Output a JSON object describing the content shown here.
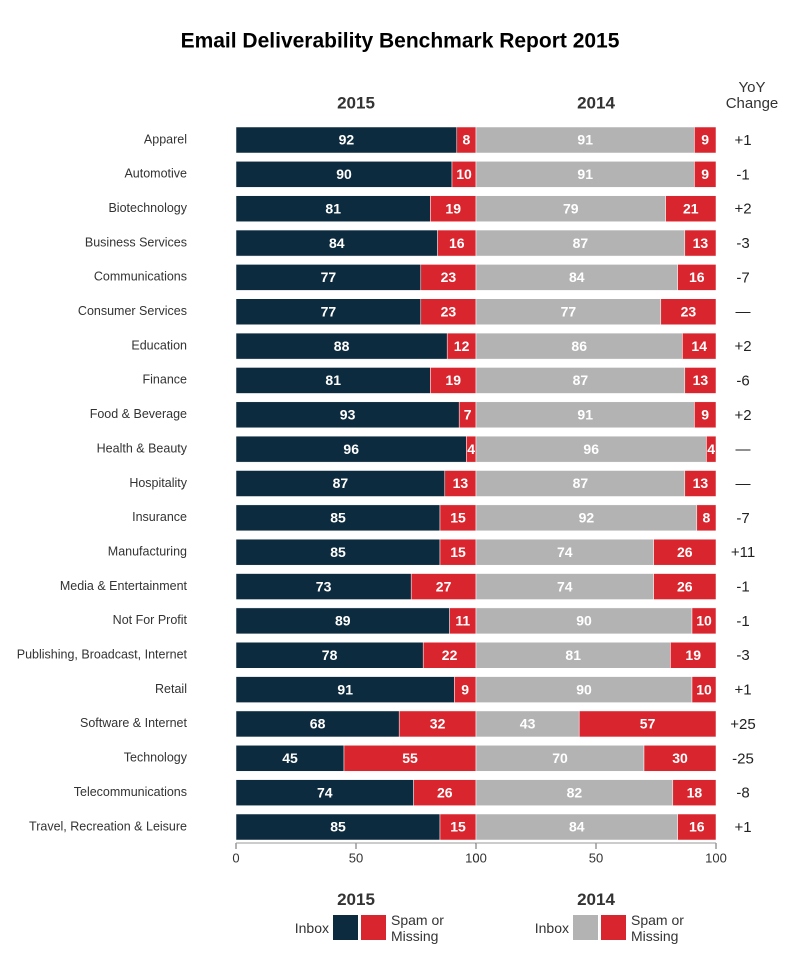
{
  "title": "Email Deliverability Benchmark Report 2015",
  "chart_data": [
    {
      "type": "bar",
      "orientation": "horizontal",
      "stacked": true,
      "title": "2015",
      "categories": [
        "Apparel",
        "Automotive",
        "Biotechnology",
        "Business Services",
        "Communications",
        "Consumer Services",
        "Education",
        "Finance",
        "Food & Beverage",
        "Health & Beauty",
        "Hospitality",
        "Insurance",
        "Manufacturing",
        "Media & Entertainment",
        "Not For Profit",
        "Publishing, Broadcast, Internet",
        "Retail",
        "Software & Internet",
        "Technology",
        "Telecommunications",
        "Travel, Recreation & Leisure"
      ],
      "series": [
        {
          "name": "Inbox",
          "color": "#0d2b3e",
          "values": [
            92,
            90,
            81,
            84,
            77,
            77,
            88,
            81,
            93,
            96,
            87,
            85,
            85,
            73,
            89,
            78,
            91,
            68,
            45,
            74,
            85
          ]
        },
        {
          "name": "Spam or Missing",
          "color": "#d9262e",
          "values": [
            8,
            10,
            19,
            16,
            23,
            23,
            12,
            19,
            7,
            4,
            13,
            15,
            15,
            27,
            11,
            22,
            9,
            32,
            55,
            26,
            15
          ]
        }
      ],
      "xlim": [
        0,
        100
      ],
      "xticks": [
        0,
        50,
        100
      ]
    },
    {
      "type": "bar",
      "orientation": "horizontal",
      "stacked": true,
      "title": "2014",
      "series": [
        {
          "name": "Inbox",
          "color": "#b3b3b3",
          "values": [
            91,
            91,
            79,
            87,
            84,
            77,
            86,
            87,
            91,
            96,
            87,
            92,
            74,
            74,
            90,
            81,
            90,
            43,
            70,
            82,
            84
          ]
        },
        {
          "name": "Spam or Missing",
          "color": "#d9262e",
          "values": [
            9,
            9,
            21,
            13,
            16,
            23,
            14,
            13,
            9,
            4,
            13,
            8,
            26,
            26,
            10,
            19,
            10,
            57,
            30,
            18,
            16
          ]
        }
      ],
      "xlim": [
        0,
        100
      ],
      "xticks": [
        0,
        50,
        100
      ]
    }
  ],
  "yoy": {
    "header": "YoY Change",
    "values": [
      1,
      -1,
      2,
      -3,
      -7,
      0,
      2,
      -6,
      2,
      0,
      0,
      -7,
      11,
      -1,
      -1,
      -3,
      1,
      25,
      -25,
      -8,
      1
    ],
    "value_labels": [
      "+1",
      "-1",
      "+2",
      "-3",
      "-7",
      "—",
      "+2",
      "-6",
      "+2",
      "—",
      "—",
      "-7",
      "+11",
      "-1",
      "-1",
      "-3",
      "+1",
      "+25",
      "-25",
      "-8",
      "+1"
    ]
  }
}
